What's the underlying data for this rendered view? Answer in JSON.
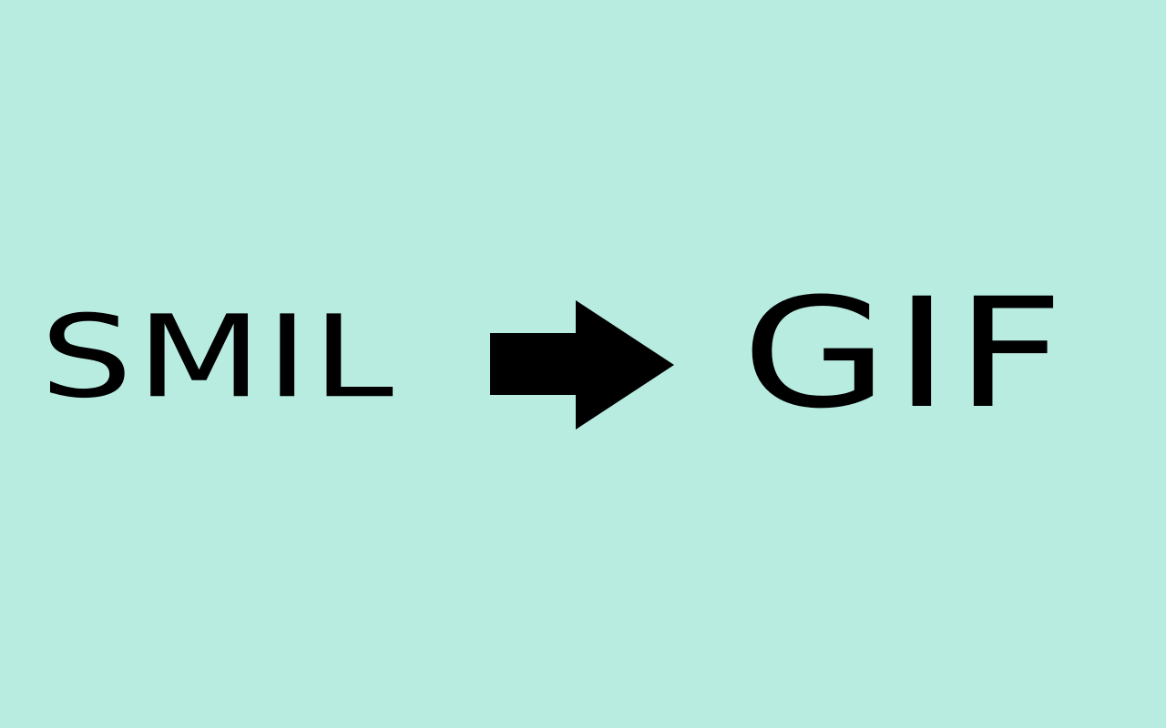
{
  "source_label": "SMIL",
  "target_label": "GIF",
  "arrow_icon": "right-arrow-icon",
  "colors": {
    "background": "#b8ece1",
    "foreground": "#000000"
  }
}
